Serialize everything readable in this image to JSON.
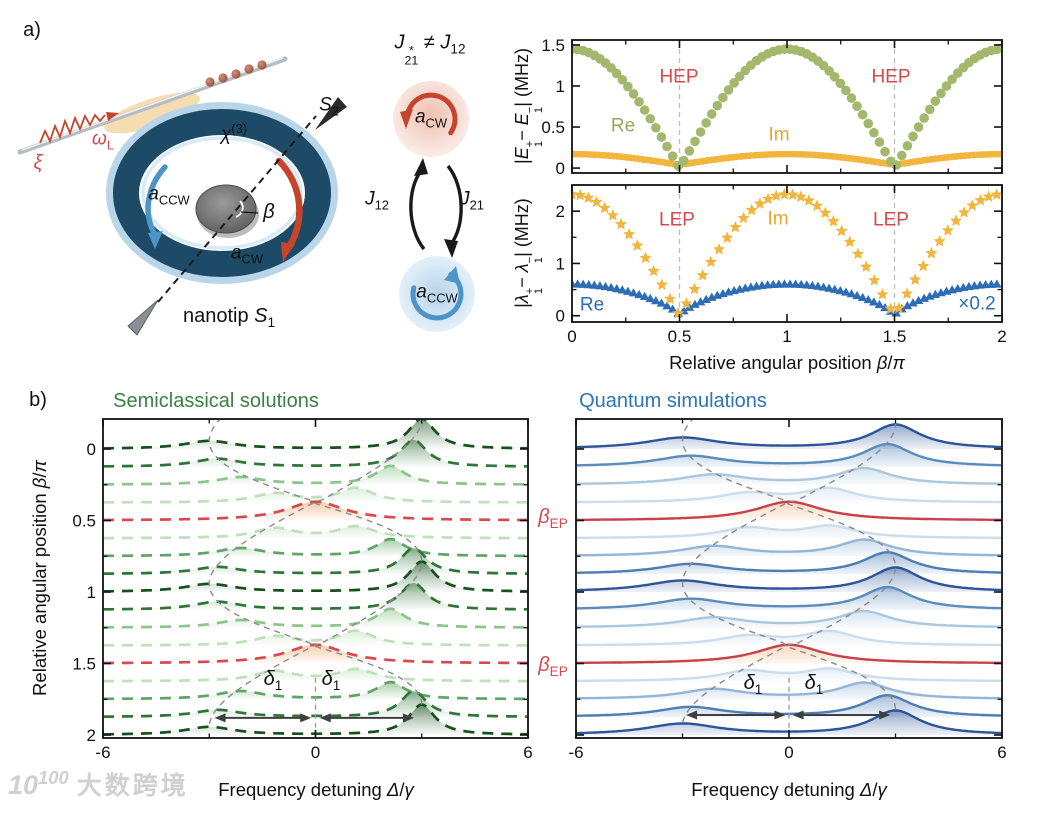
{
  "theme": {
    "accent_red": "#d7494f",
    "green_title": "#3b8143",
    "blue_title": "#2c74b8",
    "ring_color": "#1d4a66",
    "cw_color": "#c5452c",
    "ccw_color": "#4d94c7",
    "olive_marker": "#a3b86c",
    "yellow_marker": "#f2b53d",
    "blue_marker": "#2e6db4"
  },
  "panel_a": {
    "label": "a)",
    "schematic": {
      "xi": "ξ",
      "omega_l": "<i>ω</i><sub>L</sub>",
      "chi3": "<i>χ</i><sup>(3)</sup>",
      "a_ccw": "<i>a</i><sub>CCW</sub>",
      "a_cw": "<i>a</i><sub>CW</sub>",
      "beta": "<i>β</i>",
      "s2": "<i>S</i><sub>2</sub>",
      "nanotip": "nanotip <i>S</i><sub>1</sub>"
    },
    "coupling": {
      "inequality": "<i>J</i><span class='stk'><span>*</span><span>21</span></span> ≠ <i>J</i><sub>12</sub>",
      "j12": "<i>J</i><sub>12</sub>",
      "j21": "<i>J</i><sub>21</sub>",
      "mode_cw": "<i>a</i><sub>CW</sub>",
      "mode_ccw": "<i>a</i><sub>CCW</sub>"
    }
  },
  "panel_b": {
    "label": "b)"
  },
  "watermark": {
    "logo": "10<sup>100</sup>",
    "text": "大数跨境"
  },
  "chart_data": [
    {
      "id": "hybridized-splitting",
      "type": "scatter",
      "ylabel": "|<i>E</i><span class='stk'><span>+</span><span>1</span></span>− <i>E</i><span class='stk'><span>−</span><span>1</span></span>| (MHz)",
      "xlim": [
        0,
        2
      ],
      "ylim": [
        -0.06,
        1.56
      ],
      "yticks": [
        {
          "v": 0,
          "l": "0"
        },
        {
          "v": 0.5,
          "l": "0.5"
        },
        {
          "v": 1,
          "l": "1"
        },
        {
          "v": 1.5,
          "l": "1.5"
        }
      ],
      "xticks": [
        0,
        0.5,
        1,
        1.5,
        2
      ],
      "xminor": [
        0.25,
        0.75,
        1.25,
        1.75
      ],
      "vlines": [
        0.5,
        1.5
      ],
      "grid": false,
      "labels": {
        "hep1": "HEP",
        "hep2": "HEP",
        "re": "Re",
        "im": "Im"
      },
      "series": [
        {
          "name": "Im",
          "marker": "square",
          "color": "#f2b53d",
          "step": 0.02,
          "shape": {
            "form": "offset_abs_cos",
            "offset": 0.04,
            "amp": 0.13
          },
          "x_start": 0,
          "x_step": 0.1,
          "values": [
            0.17,
            0.16,
            0.15,
            0.12,
            0.09,
            0.04,
            0.09,
            0.12,
            0.15,
            0.16,
            0.17,
            0.16,
            0.15,
            0.12,
            0.09,
            0.04,
            0.09,
            0.12,
            0.15,
            0.16,
            0.17
          ]
        },
        {
          "name": "Re",
          "marker": "circle",
          "color": "#a3b86c",
          "step": 0.026,
          "shape": {
            "form": "abs_cos",
            "amp": 1.45
          },
          "x_start": 0,
          "x_step": 0.1,
          "values": [
            1.45,
            1.38,
            1.17,
            0.85,
            0.45,
            0,
            0.45,
            0.85,
            1.17,
            1.38,
            1.45,
            1.38,
            1.17,
            0.85,
            0.45,
            0,
            0.45,
            0.85,
            1.17,
            1.38,
            1.45
          ]
        }
      ]
    },
    {
      "id": "eigenvalue-splitting",
      "type": "scatter",
      "ylabel": "|<i>λ</i><span class='stk'><span>+</span><span>1</span></span>− <i>λ</i><span class='stk'><span>−</span><span>1</span></span>| (MHz)",
      "xlabel": "Relative angular position <i>β</i>/<i>π</i>",
      "xlim": [
        0,
        2
      ],
      "ylim": [
        -0.12,
        2.5
      ],
      "yticks": [
        {
          "v": 0,
          "l": "0"
        },
        {
          "v": 1,
          "l": "1"
        },
        {
          "v": 2,
          "l": "2"
        }
      ],
      "yminor": [
        0.5,
        1.5
      ],
      "xticks": [
        0,
        0.5,
        1,
        1.5,
        2
      ],
      "xminor": [
        0.25,
        0.75,
        1.25,
        1.75
      ],
      "xtick_labels": [
        {
          "v": 0,
          "l": "0"
        },
        {
          "v": 0.5,
          "l": "0.5"
        },
        {
          "v": 1,
          "l": "1"
        },
        {
          "v": 1.5,
          "l": "1.5"
        },
        {
          "v": 2,
          "l": "2"
        }
      ],
      "vlines": [
        0.5,
        1.5
      ],
      "labels": {
        "lep1": "LEP",
        "lep2": "LEP",
        "im": "Im",
        "re": "Re",
        "scale": "×0.2"
      },
      "series": [
        {
          "name": "Re",
          "marker": "triangle",
          "color": "#2e6db4",
          "step": 0.026,
          "shape": {
            "form": "pow_abs_cos",
            "amp": 0.6,
            "exp": 0.7
          },
          "x_start": 0,
          "x_step": 0.1,
          "values": [
            0.6,
            0.58,
            0.52,
            0.41,
            0.26,
            0,
            0.26,
            0.41,
            0.52,
            0.58,
            0.6,
            0.58,
            0.52,
            0.41,
            0.26,
            0,
            0.26,
            0.41,
            0.52,
            0.58,
            0.6
          ]
        },
        {
          "name": "Im",
          "marker": "star",
          "color": "#f2b53d",
          "step": 0.038,
          "shape": {
            "form": "abs_cos",
            "amp": 2.32
          },
          "x_start": 0,
          "x_step": 0.1,
          "values": [
            2.32,
            2.21,
            1.88,
            1.36,
            0.72,
            0,
            0.72,
            1.36,
            1.88,
            2.21,
            2.32,
            2.21,
            1.88,
            1.36,
            0.72,
            0,
            0.72,
            1.36,
            1.88,
            2.21,
            2.32
          ]
        }
      ]
    },
    {
      "id": "semiclassical-waterfall",
      "type": "area",
      "title": "Semiclassical solutions",
      "style": "dashed",
      "xlabel": "Frequency detuning <i>Δ</i>/<i>γ</i>",
      "ylabel": "Relative angular position <i>β</i>/<i>π</i>",
      "ep_label": "<i>β</i><sub>EP</sub>",
      "delta_label": "<i>δ</i><sub>1</sub>",
      "xlim": [
        -6,
        6
      ],
      "xticks": [
        {
          "v": -6,
          "l": "-6"
        },
        {
          "v": 0,
          "l": "0"
        },
        {
          "v": 6,
          "l": "6"
        }
      ],
      "xminor": [
        -3,
        3
      ],
      "yticks": [
        {
          "v": 0,
          "l": "0"
        },
        {
          "v": 0.5,
          "l": "0.5"
        },
        {
          "v": 1,
          "l": "1"
        },
        {
          "v": 1.5,
          "l": "1.5"
        },
        {
          "v": 2,
          "l": "2"
        }
      ],
      "yminor_step": 0.25,
      "guide_curves": {
        "amplitude": 3,
        "form": "±3cos(πβ)"
      },
      "ref_line": {
        "x": 0,
        "beta_from": 1.6,
        "beta_to": 2
      },
      "arrows": [
        {
          "x1": -2.85,
          "x2": -0.12,
          "beta": 1.88
        },
        {
          "x1": 0.12,
          "x2": 2.78,
          "beta": 1.88
        }
      ],
      "traces": [
        {
          "beta": 0,
          "color": "#17501d",
          "peaks": [
            {
              "c": -3,
              "a": 0.45,
              "w": 0.85
            },
            {
              "c": 3,
              "a": 1.7,
              "w": 0.45
            }
          ]
        },
        {
          "beta": 0.125,
          "color": "#2f7538",
          "peaks": [
            {
              "c": -2.77,
              "a": 0.45,
              "w": 0.8
            },
            {
              "c": 2.77,
              "a": 1.5,
              "w": 0.45
            }
          ]
        },
        {
          "beta": 0.25,
          "color": "#8cc489",
          "peaks": [
            {
              "c": -2.12,
              "a": 0.42,
              "w": 0.8
            },
            {
              "c": 2.12,
              "a": 1.05,
              "w": 0.5
            }
          ]
        },
        {
          "beta": 0.375,
          "color": "#bfe0bb",
          "peaks": [
            {
              "c": -1.15,
              "a": 0.5,
              "w": 0.7
            },
            {
              "c": 1.15,
              "a": 0.8,
              "w": 0.6
            }
          ]
        },
        {
          "beta": 0.5,
          "color": "#d7494f",
          "fill": "#ef9e63",
          "peaks": [
            {
              "c": 0,
              "a": 1.05,
              "w": 1
            }
          ]
        },
        {
          "beta": 0.625,
          "color": "#bfe0bb",
          "peaks": [
            {
              "c": -1.15,
              "a": 0.55,
              "w": 0.7
            },
            {
              "c": 1.15,
              "a": 0.65,
              "w": 0.65
            }
          ]
        },
        {
          "beta": 0.75,
          "color": "#61a566",
          "peaks": [
            {
              "c": -2.12,
              "a": 0.45,
              "w": 0.8
            },
            {
              "c": 2.12,
              "a": 0.95,
              "w": 0.5
            }
          ]
        },
        {
          "beta": 0.875,
          "color": "#2f7538",
          "peaks": [
            {
              "c": -2.77,
              "a": 0.4,
              "w": 0.8
            },
            {
              "c": 2.77,
              "a": 1.45,
              "w": 0.45
            }
          ]
        },
        {
          "beta": 1,
          "color": "#17501d",
          "peaks": [
            {
              "c": -3,
              "a": 0.45,
              "w": 0.85
            },
            {
              "c": 3,
              "a": 1.7,
              "w": 0.45
            }
          ]
        },
        {
          "beta": 1.125,
          "color": "#2f7538",
          "peaks": [
            {
              "c": -2.77,
              "a": 0.45,
              "w": 0.8
            },
            {
              "c": 2.77,
              "a": 1.5,
              "w": 0.45
            }
          ]
        },
        {
          "beta": 1.25,
          "color": "#8cc489",
          "peaks": [
            {
              "c": -2.12,
              "a": 0.42,
              "w": 0.8
            },
            {
              "c": 2.12,
              "a": 1.05,
              "w": 0.5
            }
          ]
        },
        {
          "beta": 1.375,
          "color": "#bfe0bb",
          "peaks": [
            {
              "c": -1.15,
              "a": 0.5,
              "w": 0.7
            },
            {
              "c": 1.15,
              "a": 0.8,
              "w": 0.6
            }
          ]
        },
        {
          "beta": 1.5,
          "color": "#d7494f",
          "fill": "#ef9e63",
          "peaks": [
            {
              "c": 0,
              "a": 1.05,
              "w": 1
            }
          ]
        },
        {
          "beta": 1.625,
          "color": "#bfe0bb",
          "peaks": [
            {
              "c": -1.15,
              "a": 0.55,
              "w": 0.7
            },
            {
              "c": 1.15,
              "a": 0.65,
              "w": 0.65
            }
          ]
        },
        {
          "beta": 1.75,
          "color": "#61a566",
          "peaks": [
            {
              "c": -2.12,
              "a": 0.45,
              "w": 0.8
            },
            {
              "c": 2.12,
              "a": 0.95,
              "w": 0.5
            }
          ]
        },
        {
          "beta": 1.875,
          "color": "#2f7538",
          "peaks": [
            {
              "c": -2.77,
              "a": 0.4,
              "w": 0.8
            },
            {
              "c": 2.77,
              "a": 1.45,
              "w": 0.45
            }
          ]
        },
        {
          "beta": 2,
          "color": "#17501d",
          "peaks": [
            {
              "c": -3,
              "a": 0.45,
              "w": 0.85
            },
            {
              "c": 3,
              "a": 1.7,
              "w": 0.45
            }
          ]
        }
      ]
    },
    {
      "id": "quantum-waterfall",
      "type": "area",
      "title": "Quantum simulations",
      "style": "solid",
      "xlabel": "Frequency detuning <i>Δ</i>/<i>γ</i>",
      "ep_label": "<i>β</i><sub>EP</sub>",
      "delta_label": "<i>δ</i><sub>1</sub>",
      "xlim": [
        -6,
        6
      ],
      "xticks": [
        {
          "v": -6,
          "l": "-6"
        },
        {
          "v": 0,
          "l": "0"
        },
        {
          "v": 6,
          "l": "6"
        }
      ],
      "xminor": [
        -3,
        3
      ],
      "yticks": [
        {
          "v": 0,
          "l": ""
        },
        {
          "v": 0.5,
          "l": ""
        },
        {
          "v": 1,
          "l": ""
        },
        {
          "v": 1.5,
          "l": ""
        },
        {
          "v": 2,
          "l": ""
        }
      ],
      "yminor_step": 0.25,
      "guide_curves": {
        "amplitude": 3,
        "form": "±3cos(πβ)"
      },
      "ref_line": {
        "x": 0,
        "beta_from": 1.6,
        "beta_to": 2
      },
      "arrows": [
        {
          "x1": -2.9,
          "x2": -0.1,
          "beta": 1.86
        },
        {
          "x1": 0.1,
          "x2": 2.85,
          "beta": 1.86
        }
      ],
      "traces": [
        {
          "beta": 0,
          "color": "#2d5499",
          "peaks": [
            {
              "c": -3,
              "a": 0.62,
              "w": 1.25
            },
            {
              "c": 3,
              "a": 1.35,
              "w": 0.85
            }
          ]
        },
        {
          "beta": 0.125,
          "color": "#5b8abc",
          "peaks": [
            {
              "c": -2.77,
              "a": 0.6,
              "w": 1.2
            },
            {
              "c": 2.77,
              "a": 1.25,
              "w": 0.85
            }
          ]
        },
        {
          "beta": 0.25,
          "color": "#a9c7df",
          "peaks": [
            {
              "c": -2.12,
              "a": 0.55,
              "w": 1.15
            },
            {
              "c": 2.12,
              "a": 0.9,
              "w": 0.9
            }
          ]
        },
        {
          "beta": 0.375,
          "color": "#cbdcec",
          "peaks": [
            {
              "c": -1.15,
              "a": 0.5,
              "w": 1
            },
            {
              "c": 1.15,
              "a": 0.75,
              "w": 0.9
            }
          ]
        },
        {
          "beta": 0.5,
          "color": "#c8404a",
          "fill": "#f0ab76",
          "peaks": [
            {
              "c": 0,
              "a": 1.05,
              "w": 1.15
            }
          ]
        },
        {
          "beta": 0.625,
          "color": "#cbdcec",
          "peaks": [
            {
              "c": -1.15,
              "a": 0.55,
              "w": 0.95
            },
            {
              "c": 1.15,
              "a": 0.65,
              "w": 0.9
            }
          ]
        },
        {
          "beta": 0.75,
          "color": "#93b6d6",
          "peaks": [
            {
              "c": -2.12,
              "a": 0.55,
              "w": 1.1
            },
            {
              "c": 2.12,
              "a": 0.9,
              "w": 0.9
            }
          ]
        },
        {
          "beta": 0.875,
          "color": "#4d7db3",
          "peaks": [
            {
              "c": -2.77,
              "a": 0.55,
              "w": 1.15
            },
            {
              "c": 2.77,
              "a": 1.2,
              "w": 0.85
            }
          ]
        },
        {
          "beta": 1,
          "color": "#2d5499",
          "peaks": [
            {
              "c": -3,
              "a": 0.62,
              "w": 1.25
            },
            {
              "c": 3,
              "a": 1.35,
              "w": 0.85
            }
          ]
        },
        {
          "beta": 1.125,
          "color": "#5b8abc",
          "peaks": [
            {
              "c": -2.77,
              "a": 0.6,
              "w": 1.2
            },
            {
              "c": 2.77,
              "a": 1.25,
              "w": 0.85
            }
          ]
        },
        {
          "beta": 1.25,
          "color": "#a9c7df",
          "peaks": [
            {
              "c": -2.12,
              "a": 0.55,
              "w": 1.15
            },
            {
              "c": 2.12,
              "a": 0.9,
              "w": 0.9
            }
          ]
        },
        {
          "beta": 1.375,
          "color": "#cbdcec",
          "peaks": [
            {
              "c": -1.15,
              "a": 0.5,
              "w": 1
            },
            {
              "c": 1.15,
              "a": 0.75,
              "w": 0.9
            }
          ]
        },
        {
          "beta": 1.5,
          "color": "#c8404a",
          "fill": "#f0ab76",
          "peaks": [
            {
              "c": 0,
              "a": 1.05,
              "w": 1.15
            }
          ]
        },
        {
          "beta": 1.625,
          "color": "#cbdcec",
          "peaks": [
            {
              "c": -1.15,
              "a": 0.55,
              "w": 0.95
            },
            {
              "c": 1.15,
              "a": 0.65,
              "w": 0.9
            }
          ]
        },
        {
          "beta": 1.75,
          "color": "#93b6d6",
          "peaks": [
            {
              "c": -2.12,
              "a": 0.55,
              "w": 1.1
            },
            {
              "c": 2.12,
              "a": 0.9,
              "w": 0.9
            }
          ]
        },
        {
          "beta": 1.875,
          "color": "#4d7db3",
          "peaks": [
            {
              "c": -2.77,
              "a": 0.55,
              "w": 1.15
            },
            {
              "c": 2.77,
              "a": 1.2,
              "w": 0.85
            }
          ]
        },
        {
          "beta": 2,
          "color": "#2d5499",
          "peaks": [
            {
              "c": -3,
              "a": 0.62,
              "w": 1.25
            },
            {
              "c": 3,
              "a": 1.35,
              "w": 0.85
            }
          ]
        }
      ]
    }
  ]
}
